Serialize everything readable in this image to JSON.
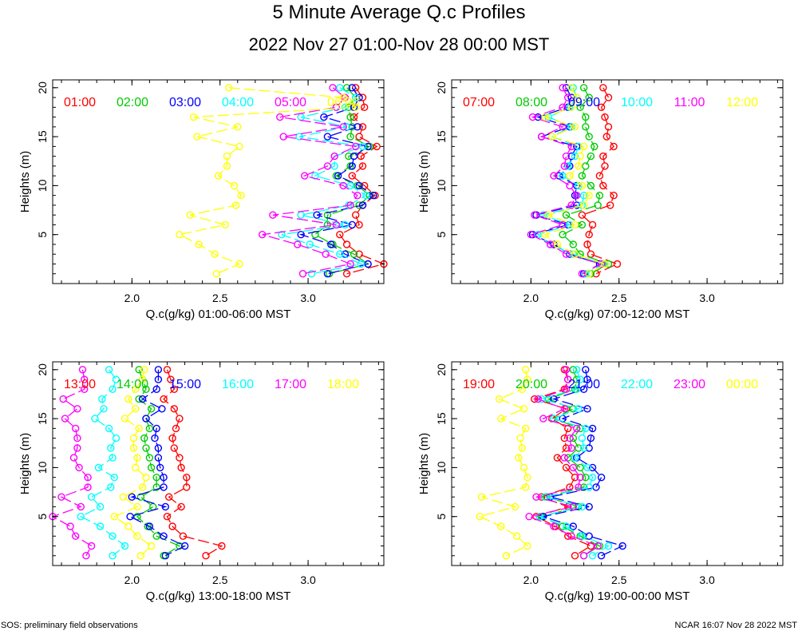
{
  "page": {
    "title": "5 Minute Average Q.c Profiles",
    "subtitle": "2022 Nov 27 01:00-Nov 28 00:00 MST",
    "footer_left": "SOS: preliminary field observations",
    "footer_right": "NCAR 16:07 Nov 28 2022 MST"
  },
  "chart_data": [
    {
      "type": "line",
      "title": "",
      "xlabel": "Q.c(g/kg) 01:00-06:00 MST",
      "ylabel": "Heights (m)",
      "xlim": [
        1.55,
        3.43
      ],
      "ylim": [
        0,
        20.8
      ],
      "xticks": [
        "2.0",
        "2.5",
        "3.0"
      ],
      "yticks": [
        "5",
        "10",
        "15",
        "20"
      ],
      "heights": [
        20,
        19,
        18,
        17,
        16,
        15,
        14,
        13,
        12,
        11,
        10,
        9,
        8,
        7,
        6,
        5,
        4,
        3,
        2,
        1
      ],
      "series": [
        {
          "name": "01:00",
          "color": "#ff0000",
          "values": [
            3.27,
            3.31,
            3.32,
            3.26,
            3.31,
            3.29,
            3.39,
            3.3,
            3.31,
            3.25,
            3.32,
            3.38,
            3.31,
            3.27,
            3.29,
            3.18,
            3.22,
            3.29,
            3.43,
            3.22
          ]
        },
        {
          "name": "02:00",
          "color": "#00cc00",
          "values": [
            3.22,
            3.27,
            3.23,
            3.24,
            3.25,
            3.24,
            3.35,
            3.23,
            3.24,
            3.16,
            3.28,
            3.35,
            3.29,
            3.11,
            3.11,
            3.04,
            3.14,
            3.26,
            3.34,
            3.12
          ]
        },
        {
          "name": "03:00",
          "color": "#0000ff",
          "values": [
            3.25,
            3.29,
            3.26,
            3.09,
            3.28,
            3.11,
            3.34,
            3.26,
            3.25,
            3.17,
            3.29,
            3.37,
            3.31,
            3.05,
            3.25,
            2.96,
            3.13,
            3.21,
            3.34,
            3.11
          ]
        },
        {
          "name": "04:00",
          "color": "#00ffff",
          "values": [
            3.18,
            3.27,
            3.21,
            2.96,
            3.22,
            2.95,
            3.31,
            3.15,
            3.15,
            3.04,
            3.24,
            3.33,
            3.23,
            2.96,
            3.21,
            2.85,
            3.01,
            3.18,
            3.3,
            3.02
          ]
        },
        {
          "name": "05:00",
          "color": "#ff00ff",
          "values": [
            3.14,
            3.21,
            3.16,
            2.84,
            3.2,
            2.86,
            3.27,
            3.15,
            3.11,
            2.98,
            3.2,
            3.28,
            3.24,
            2.8,
            3.16,
            2.74,
            2.94,
            3.1,
            3.24,
            2.97
          ]
        },
        {
          "name": "06:00",
          "color": "#ffff00",
          "values": [
            2.55,
            3.2,
            3.27,
            2.35,
            2.6,
            2.37,
            2.61,
            2.54,
            2.54,
            2.49,
            2.58,
            2.62,
            2.59,
            2.33,
            2.53,
            2.27,
            2.38,
            2.47,
            2.61,
            2.48
          ]
        }
      ]
    },
    {
      "type": "line",
      "title": "",
      "xlabel": "Q.c(g/kg) 07:00-12:00 MST",
      "ylabel": "Heights (m)",
      "xlim": [
        1.55,
        3.43
      ],
      "ylim": [
        0,
        20.8
      ],
      "xticks": [
        "2.0",
        "2.5",
        "3.0"
      ],
      "yticks": [
        "5",
        "10",
        "15",
        "20"
      ],
      "heights": [
        20,
        19,
        18,
        17,
        16,
        15,
        14,
        13,
        12,
        11,
        10,
        9,
        8,
        7,
        6,
        5,
        4,
        3,
        2,
        1
      ],
      "series": [
        {
          "name": "07:00",
          "color": "#ff0000",
          "values": [
            2.41,
            2.44,
            2.4,
            2.42,
            2.44,
            2.43,
            2.47,
            2.41,
            2.42,
            2.39,
            2.41,
            2.47,
            2.45,
            2.29,
            2.35,
            2.33,
            2.32,
            2.34,
            2.49,
            2.37
          ]
        },
        {
          "name": "08:00",
          "color": "#00cc00",
          "values": [
            2.3,
            2.33,
            2.28,
            2.31,
            2.31,
            2.33,
            2.36,
            2.34,
            2.31,
            2.29,
            2.34,
            2.39,
            2.38,
            2.2,
            2.29,
            2.18,
            2.24,
            2.28,
            2.44,
            2.34
          ]
        },
        {
          "name": "09:00",
          "color": "#0000ff",
          "values": [
            2.2,
            2.23,
            2.21,
            2.04,
            2.22,
            2.06,
            2.26,
            2.23,
            2.22,
            2.16,
            2.26,
            2.25,
            2.26,
            2.03,
            2.21,
            2.01,
            2.13,
            2.22,
            2.39,
            2.3
          ]
        },
        {
          "name": "10:00",
          "color": "#00ffff",
          "values": [
            2.24,
            2.26,
            2.22,
            2.1,
            2.23,
            2.12,
            2.27,
            2.25,
            2.21,
            2.18,
            2.27,
            2.3,
            2.29,
            2.07,
            2.22,
            2.04,
            2.11,
            2.24,
            2.41,
            2.31
          ]
        },
        {
          "name": "11:00",
          "color": "#ff00ff",
          "values": [
            2.18,
            2.21,
            2.18,
            2.01,
            2.18,
            2.06,
            2.23,
            2.2,
            2.19,
            2.13,
            2.22,
            2.26,
            2.23,
            2.02,
            2.18,
            2.0,
            2.11,
            2.2,
            2.4,
            2.29
          ]
        },
        {
          "name": "12:00",
          "color": "#ffff00",
          "values": [
            2.23,
            2.26,
            2.23,
            2.08,
            2.25,
            2.12,
            2.3,
            2.28,
            2.27,
            2.22,
            2.29,
            2.33,
            2.3,
            2.1,
            2.25,
            2.08,
            2.15,
            2.25,
            2.42,
            2.33
          ]
        }
      ]
    },
    {
      "type": "line",
      "title": "",
      "xlabel": "Q.c(g/kg) 13:00-18:00 MST",
      "ylabel": "Heights (m)",
      "xlim": [
        1.55,
        3.43
      ],
      "ylim": [
        0,
        20.8
      ],
      "xticks": [
        "2.0",
        "2.5",
        "3.0"
      ],
      "yticks": [
        "5",
        "10",
        "15",
        "20"
      ],
      "heights": [
        20,
        19,
        18,
        17,
        16,
        15,
        14,
        13,
        12,
        11,
        10,
        9,
        8,
        7,
        6,
        5,
        4,
        3,
        2,
        1
      ],
      "series": [
        {
          "name": "13:00",
          "color": "#ff0000",
          "values": [
            2.2,
            2.22,
            2.24,
            2.18,
            2.24,
            2.27,
            2.25,
            2.23,
            2.24,
            2.27,
            2.28,
            2.31,
            2.31,
            2.21,
            2.28,
            2.2,
            2.23,
            2.29,
            2.51,
            2.42
          ]
        },
        {
          "name": "14:00",
          "color": "#00cc00",
          "values": [
            2.04,
            2.06,
            2.08,
            2.04,
            2.11,
            2.08,
            2.1,
            2.07,
            2.08,
            2.1,
            2.11,
            2.14,
            2.14,
            2.05,
            2.12,
            2.03,
            2.09,
            2.14,
            2.27,
            2.18
          ]
        },
        {
          "name": "15:00",
          "color": "#0000ff",
          "values": [
            2.15,
            2.15,
            2.14,
            2.06,
            2.17,
            2.08,
            2.14,
            2.13,
            2.15,
            2.15,
            2.16,
            2.18,
            2.18,
            2.0,
            2.19,
            1.99,
            2.1,
            2.18,
            2.3,
            2.19
          ]
        },
        {
          "name": "16:00",
          "color": "#00ffff",
          "values": [
            1.87,
            1.91,
            1.89,
            1.83,
            1.84,
            1.79,
            1.87,
            1.91,
            1.88,
            1.89,
            1.81,
            1.9,
            1.88,
            1.77,
            1.82,
            1.71,
            1.82,
            1.89,
            1.96,
            1.89
          ]
        },
        {
          "name": "17:00",
          "color": "#ff00ff",
          "values": [
            1.72,
            1.73,
            1.73,
            1.61,
            1.69,
            1.62,
            1.68,
            1.69,
            1.69,
            1.67,
            1.7,
            1.75,
            1.75,
            1.6,
            1.71,
            1.55,
            1.65,
            1.68,
            1.77,
            1.74
          ]
        },
        {
          "name": "18:00",
          "color": "#ffff00",
          "values": [
            2.07,
            2.06,
            2.02,
            1.98,
            2.02,
            1.96,
            2.04,
            2.01,
            2.01,
            2.03,
            2.02,
            2.08,
            2.06,
            1.95,
            2.03,
            1.9,
            1.98,
            2.03,
            2.11,
            2.05
          ]
        }
      ]
    },
    {
      "type": "line",
      "title": "",
      "xlabel": "Q.c(g/kg) 19:00-00:00 MST",
      "ylabel": "Heights (m)",
      "xlim": [
        1.55,
        3.43
      ],
      "ylim": [
        0,
        20.8
      ],
      "xticks": [
        "2.0",
        "2.5",
        "3.0"
      ],
      "yticks": [
        "5",
        "10",
        "15",
        "20"
      ],
      "heights": [
        20,
        19,
        18,
        17,
        16,
        15,
        14,
        13,
        12,
        11,
        10,
        9,
        8,
        7,
        6,
        5,
        4,
        3,
        2,
        1
      ],
      "series": [
        {
          "name": "19:00",
          "color": "#ff0000",
          "values": [
            2.19,
            2.21,
            2.19,
            2.02,
            2.2,
            2.12,
            2.21,
            2.19,
            2.2,
            2.15,
            2.2,
            2.25,
            2.22,
            2.06,
            2.21,
            2.03,
            2.14,
            2.21,
            2.34,
            2.25
          ]
        },
        {
          "name": "20:00",
          "color": "#00cc00",
          "values": [
            2.24,
            2.26,
            2.25,
            2.1,
            2.24,
            2.13,
            2.28,
            2.24,
            2.27,
            2.21,
            2.28,
            2.31,
            2.3,
            2.09,
            2.27,
            2.06,
            2.18,
            2.28,
            2.39,
            2.3
          ]
        },
        {
          "name": "21:00",
          "color": "#0000ff",
          "values": [
            2.31,
            2.32,
            2.3,
            2.13,
            2.32,
            2.18,
            2.35,
            2.34,
            2.33,
            2.26,
            2.35,
            2.4,
            2.37,
            2.11,
            2.33,
            2.07,
            2.24,
            2.33,
            2.52,
            2.4
          ]
        },
        {
          "name": "22:00",
          "color": "#00ffff",
          "values": [
            2.26,
            2.28,
            2.26,
            2.06,
            2.27,
            2.13,
            2.31,
            2.29,
            2.3,
            2.25,
            2.32,
            2.35,
            2.33,
            2.08,
            2.29,
            2.05,
            2.2,
            2.29,
            2.44,
            2.35
          ]
        },
        {
          "name": "23:00",
          "color": "#ff00ff",
          "values": [
            2.2,
            2.21,
            2.2,
            2.04,
            2.19,
            2.07,
            2.26,
            2.22,
            2.23,
            2.19,
            2.24,
            2.28,
            2.27,
            2.03,
            2.24,
            1.99,
            2.13,
            2.23,
            2.38,
            2.3
          ]
        },
        {
          "name": "00:00",
          "color": "#ffff00",
          "values": [
            1.97,
            1.98,
            1.95,
            1.82,
            1.96,
            1.83,
            1.97,
            1.94,
            1.95,
            1.93,
            1.96,
            1.98,
            1.97,
            1.72,
            1.91,
            1.71,
            1.83,
            1.92,
            1.98,
            1.86
          ]
        }
      ]
    }
  ]
}
